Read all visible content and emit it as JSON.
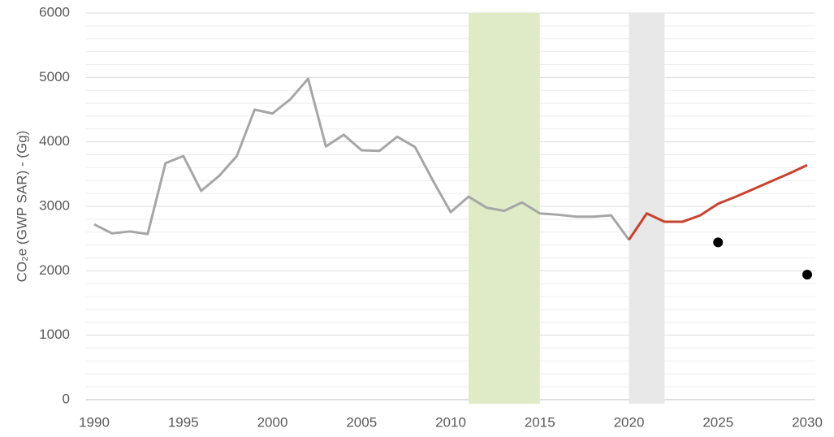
{
  "chart_data": {
    "type": "line",
    "ylabel": "CO₂e (GWP SAR) - (Gg)",
    "xlim": [
      1990,
      2030
    ],
    "xticks": [
      1990,
      1995,
      2000,
      2005,
      2010,
      2015,
      2020,
      2025,
      2030
    ],
    "ylim": [
      0,
      6000
    ],
    "yticks": [
      0,
      1000,
      2000,
      3000,
      4000,
      5000,
      6000
    ],
    "minor_yticks": [
      200,
      400,
      600,
      800,
      1200,
      1400,
      1600,
      1800,
      2200,
      2400,
      2600,
      2800,
      3200,
      3400,
      3600,
      3800,
      4200,
      4400,
      4600,
      4800,
      5200,
      5400,
      5600,
      5800
    ],
    "grid": true,
    "bands": [
      {
        "from": 2011,
        "to": 2015,
        "color": "#dfeac6"
      },
      {
        "from": 2020,
        "to": 2022,
        "color": "#e8e8e8"
      }
    ],
    "series": [
      {
        "type": "line",
        "color": "#a6a6a6",
        "x": [
          1990,
          1991,
          1992,
          1993,
          1994,
          1995,
          1996,
          1997,
          1998,
          1999,
          2000,
          2001,
          2002,
          2003,
          2004,
          2005,
          2006,
          2007,
          2008,
          2009,
          2010,
          2011,
          2012,
          2013,
          2014,
          2015,
          2016,
          2017,
          2018,
          2019,
          2020
        ],
        "values": [
          2720,
          2580,
          2610,
          2570,
          3670,
          3780,
          3240,
          3470,
          3780,
          4500,
          4440,
          4660,
          4980,
          3930,
          4110,
          3870,
          3860,
          4080,
          3920,
          3400,
          2910,
          3150,
          2980,
          2930,
          3060,
          2890,
          2870,
          2840,
          2840,
          2860,
          2480
        ]
      },
      {
        "type": "line",
        "color": "#c8432f",
        "x": [
          2020,
          2021,
          2022,
          2023,
          2024,
          2025,
          2026,
          2027,
          2028,
          2029,
          2030
        ],
        "values": [
          2480,
          2890,
          2760,
          2760,
          2860,
          3040,
          3150,
          3270,
          3390,
          3510,
          3640
        ]
      },
      {
        "type": "scatter",
        "color": "#000000",
        "x": [
          2025,
          2030
        ],
        "values": [
          2440,
          1940
        ]
      }
    ]
  }
}
